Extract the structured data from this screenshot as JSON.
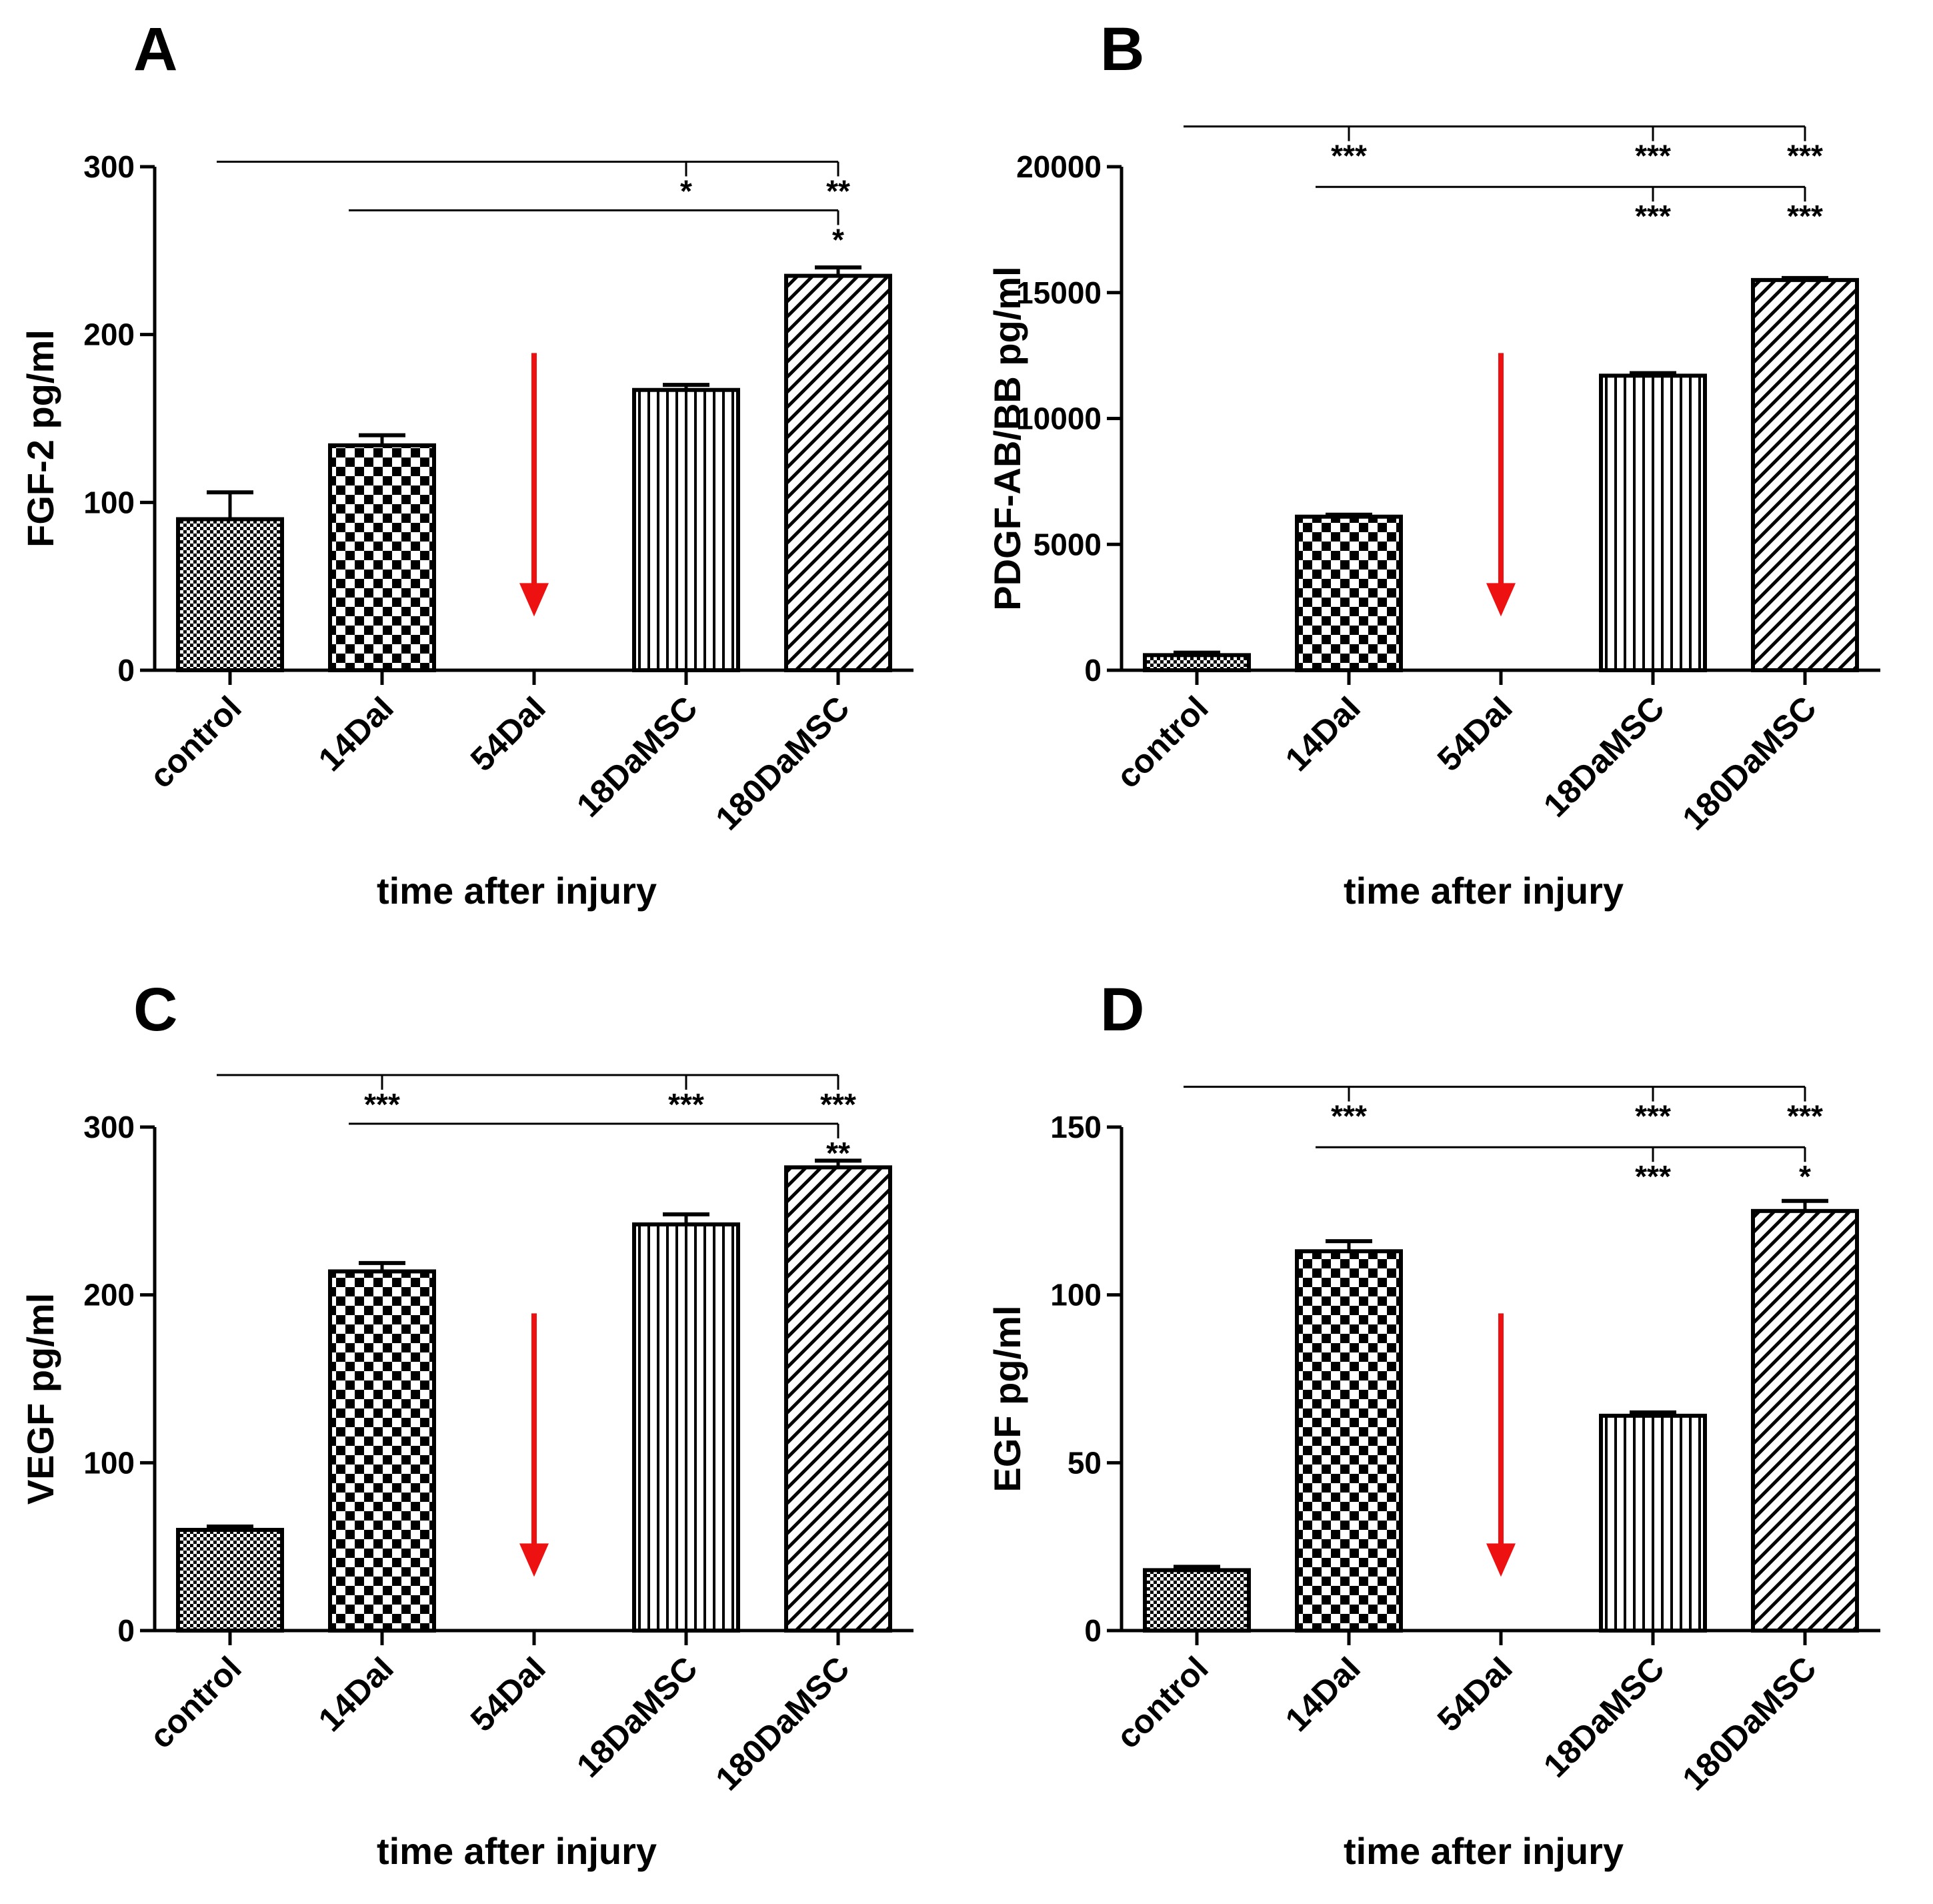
{
  "chart_data": [
    {
      "type": "bar",
      "panel": "A",
      "categories": [
        "control",
        "14DaI",
        "54DaI",
        "18DaMSC",
        "180DaMSC"
      ],
      "values": [
        90,
        134,
        0,
        167,
        235
      ],
      "errors": [
        16,
        6,
        0,
        3,
        5
      ],
      "title": "",
      "xlabel": "time after injury",
      "ylabel": "FGF-2 pg/ml",
      "ylim": [
        0,
        300
      ],
      "yticks": [
        0,
        100,
        200,
        300
      ],
      "patterns": [
        "fine-check",
        "checker",
        "none",
        "vertical",
        "diagonal"
      ],
      "arrow_category": "54DaI",
      "arrow_color": "#ee1111",
      "brackets": [
        {
          "from": "control",
          "data_y": 303,
          "marks": [
            {
              "to": "18DaMSC",
              "label": "*"
            },
            {
              "to": "180DaMSC",
              "label": "**"
            }
          ]
        },
        {
          "from": "14DaI",
          "data_y": 274,
          "marks": [
            {
              "to": "180DaMSC",
              "label": "*"
            }
          ]
        }
      ]
    },
    {
      "type": "bar",
      "panel": "B",
      "categories": [
        "control",
        "14DaI",
        "54DaI",
        "18DaMSC",
        "180DaMSC"
      ],
      "values": [
        600,
        6100,
        0,
        11700,
        15500
      ],
      "errors": [
        100,
        80,
        0,
        100,
        80
      ],
      "title": "",
      "xlabel": "time after injury",
      "ylabel": "PDGF-AB/BB pg/ml",
      "ylim": [
        0,
        20000
      ],
      "yticks": [
        0,
        5000,
        10000,
        15000,
        20000
      ],
      "patterns": [
        "fine-check",
        "checker",
        "none",
        "vertical",
        "diagonal"
      ],
      "arrow_category": "54DaI",
      "arrow_color": "#ee1111",
      "brackets": [
        {
          "from": "control",
          "data_y": 21600,
          "marks": [
            {
              "to": "14DaI",
              "label": "***"
            },
            {
              "to": "18DaMSC",
              "label": "***"
            },
            {
              "to": "180DaMSC",
              "label": "***"
            }
          ]
        },
        {
          "from": "14DaI",
          "data_y": 19200,
          "marks": [
            {
              "to": "18DaMSC",
              "label": "***"
            },
            {
              "to": "180DaMSC",
              "label": "***"
            }
          ]
        }
      ]
    },
    {
      "type": "bar",
      "panel": "C",
      "categories": [
        "control",
        "14DaI",
        "54DaI",
        "18DaMSC",
        "180DaMSC"
      ],
      "values": [
        60,
        214,
        0,
        242,
        276
      ],
      "errors": [
        2,
        5,
        0,
        6,
        4
      ],
      "title": "",
      "xlabel": "time after injury",
      "ylabel": "VEGF pg/ml",
      "ylim": [
        0,
        300
      ],
      "yticks": [
        0,
        100,
        200,
        300
      ],
      "patterns": [
        "fine-check",
        "checker",
        "none",
        "vertical",
        "diagonal"
      ],
      "arrow_category": "54DaI",
      "arrow_color": "#ee1111",
      "brackets": [
        {
          "from": "control",
          "data_y": 331,
          "marks": [
            {
              "to": "14DaI",
              "label": "***"
            },
            {
              "to": "18DaMSC",
              "label": "***"
            },
            {
              "to": "180DaMSC",
              "label": "***"
            }
          ]
        },
        {
          "from": "14DaI",
          "data_y": 302,
          "marks": [
            {
              "to": "180DaMSC",
              "label": "**"
            }
          ]
        }
      ]
    },
    {
      "type": "bar",
      "panel": "D",
      "categories": [
        "control",
        "14DaI",
        "54DaI",
        "18DaMSC",
        "180DaMSC"
      ],
      "values": [
        18,
        113,
        0,
        64,
        125
      ],
      "errors": [
        1,
        3,
        0,
        1,
        3
      ],
      "title": "",
      "xlabel": "time after injury",
      "ylabel": "EGF pg/ml",
      "ylim": [
        0,
        150
      ],
      "yticks": [
        0,
        50,
        100,
        150
      ],
      "patterns": [
        "fine-check",
        "checker",
        "none",
        "vertical",
        "diagonal"
      ],
      "arrow_category": "54DaI",
      "arrow_color": "#ee1111",
      "brackets": [
        {
          "from": "control",
          "data_y": 162,
          "marks": [
            {
              "to": "14DaI",
              "label": "***"
            },
            {
              "to": "18DaMSC",
              "label": "***"
            },
            {
              "to": "180DaMSC",
              "label": "***"
            }
          ]
        },
        {
          "from": "14DaI",
          "data_y": 144,
          "marks": [
            {
              "to": "18DaMSC",
              "label": "***"
            },
            {
              "to": "180DaMSC",
              "label": "*"
            }
          ]
        }
      ]
    }
  ]
}
